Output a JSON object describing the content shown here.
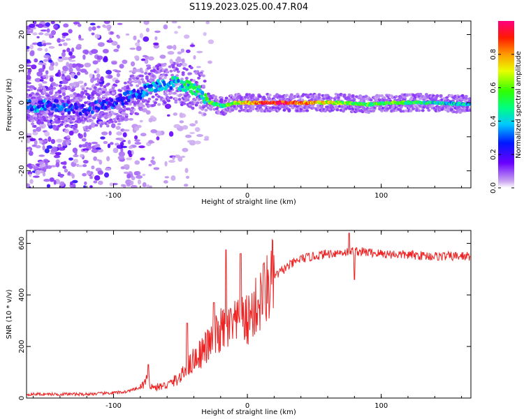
{
  "title": "S119.2023.025.00.47.R04",
  "colors": {
    "snr_line": "#ee2222",
    "frame": "#000000"
  },
  "chart_data": [
    {
      "type": "heatmap",
      "title": "S119.2023.025.00.47.R04",
      "xlabel": "Height of straight line (km)",
      "ylabel": "Frequency (Hz)",
      "xlim": [
        -165,
        167
      ],
      "ylim": [
        -25,
        24
      ],
      "x_ticks": [
        -100,
        0,
        100
      ],
      "y_ticks": [
        -20,
        -10,
        0,
        10,
        20
      ],
      "x_tick_labels": [
        "-100",
        "0",
        "100"
      ],
      "y_tick_labels": [
        "-20",
        "-10",
        "0",
        "10",
        "20"
      ],
      "colorbar": {
        "label": "Normalized spectral amplitude",
        "range": [
          0.0,
          1.0
        ],
        "ticks": [
          0.0,
          0.2,
          0.4,
          0.6,
          0.8
        ],
        "tick_labels": [
          "0.0",
          "0.2",
          "0.4",
          "0.6",
          "0.8"
        ],
        "colormap": "rainbow (white-purple-blue-cyan-green-yellow-orange-red-magenta)"
      },
      "ridge": {
        "description": "main spectral ridge",
        "points": [
          {
            "x": -160,
            "y": -1,
            "amp": 0.3
          },
          {
            "x": -140,
            "y": -1,
            "amp": 0.25
          },
          {
            "x": -120,
            "y": -2,
            "amp": 0.2
          },
          {
            "x": -100,
            "y": 0,
            "amp": 0.25
          },
          {
            "x": -80,
            "y": 3,
            "amp": 0.3
          },
          {
            "x": -70,
            "y": 5,
            "amp": 0.35
          },
          {
            "x": -55,
            "y": 6,
            "amp": 0.4
          },
          {
            "x": -45,
            "y": 5,
            "amp": 0.45
          },
          {
            "x": -35,
            "y": 3,
            "amp": 0.45
          },
          {
            "x": -28,
            "y": 0,
            "amp": 0.55
          },
          {
            "x": -18,
            "y": -1,
            "amp": 0.5
          },
          {
            "x": -10,
            "y": 0,
            "amp": 0.6
          },
          {
            "x": 0,
            "y": 0,
            "amp": 0.75
          },
          {
            "x": 20,
            "y": 0,
            "amp": 0.95
          },
          {
            "x": 40,
            "y": 0,
            "amp": 0.85
          },
          {
            "x": 70,
            "y": 0,
            "amp": 0.6
          },
          {
            "x": 90,
            "y": -0.5,
            "amp": 0.55
          },
          {
            "x": 110,
            "y": 0,
            "amp": 0.55
          },
          {
            "x": 140,
            "y": 0,
            "amp": 0.45
          },
          {
            "x": 165,
            "y": -0.5,
            "amp": 0.4
          }
        ]
      }
    },
    {
      "type": "line",
      "xlabel": "Height of straight line (km)",
      "ylabel": "SNR (10 * v/v)",
      "xlim": [
        -165,
        167
      ],
      "ylim": [
        0,
        650
      ],
      "x_ticks": [
        -100,
        0,
        100
      ],
      "y_ticks": [
        0,
        200,
        400,
        600
      ],
      "x_tick_labels": [
        "-100",
        "0",
        "100"
      ],
      "y_tick_labels": [
        "0",
        "200",
        "400",
        "600"
      ],
      "envelope": {
        "x": [
          -165,
          -140,
          -120,
          -100,
          -90,
          -80,
          -75,
          -70,
          -60,
          -50,
          -40,
          -30,
          -20,
          -10,
          0,
          10,
          20,
          30,
          40,
          60,
          80,
          100,
          120,
          140,
          167
        ],
        "y": [
          15,
          15,
          15,
          20,
          25,
          40,
          70,
          40,
          50,
          80,
          150,
          200,
          260,
          280,
          300,
          380,
          470,
          510,
          540,
          560,
          570,
          560,
          555,
          550,
          550
        ]
      },
      "spikes": [
        {
          "x": -74,
          "y": 130
        },
        {
          "x": -45,
          "y": 290
        },
        {
          "x": -25,
          "y": 370
        },
        {
          "x": -16,
          "y": 575
        },
        {
          "x": -5,
          "y": 560
        },
        {
          "x": 12,
          "y": 520
        },
        {
          "x": 76,
          "y": 640
        },
        {
          "x": 80,
          "y": 460
        }
      ]
    }
  ]
}
